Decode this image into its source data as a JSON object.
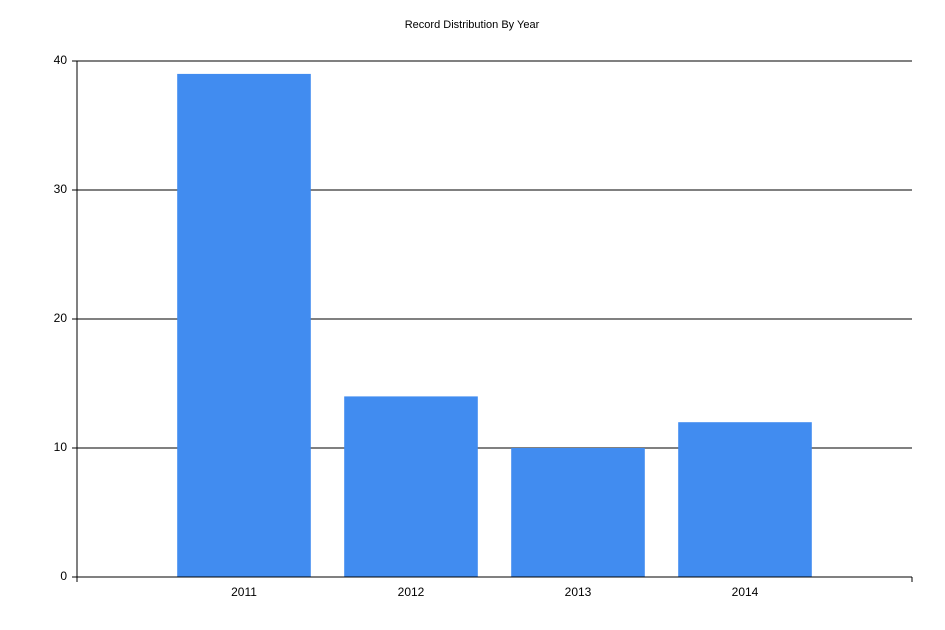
{
  "chart_data": {
    "type": "bar",
    "title": "Record Distribution By Year",
    "categories": [
      "2011",
      "2012",
      "2013",
      "2014"
    ],
    "values": [
      39,
      14,
      10,
      12
    ],
    "color": "#418cf0",
    "ylim": [
      0,
      40
    ],
    "yticks": [
      0,
      10,
      20,
      30,
      40
    ],
    "grid": true
  }
}
